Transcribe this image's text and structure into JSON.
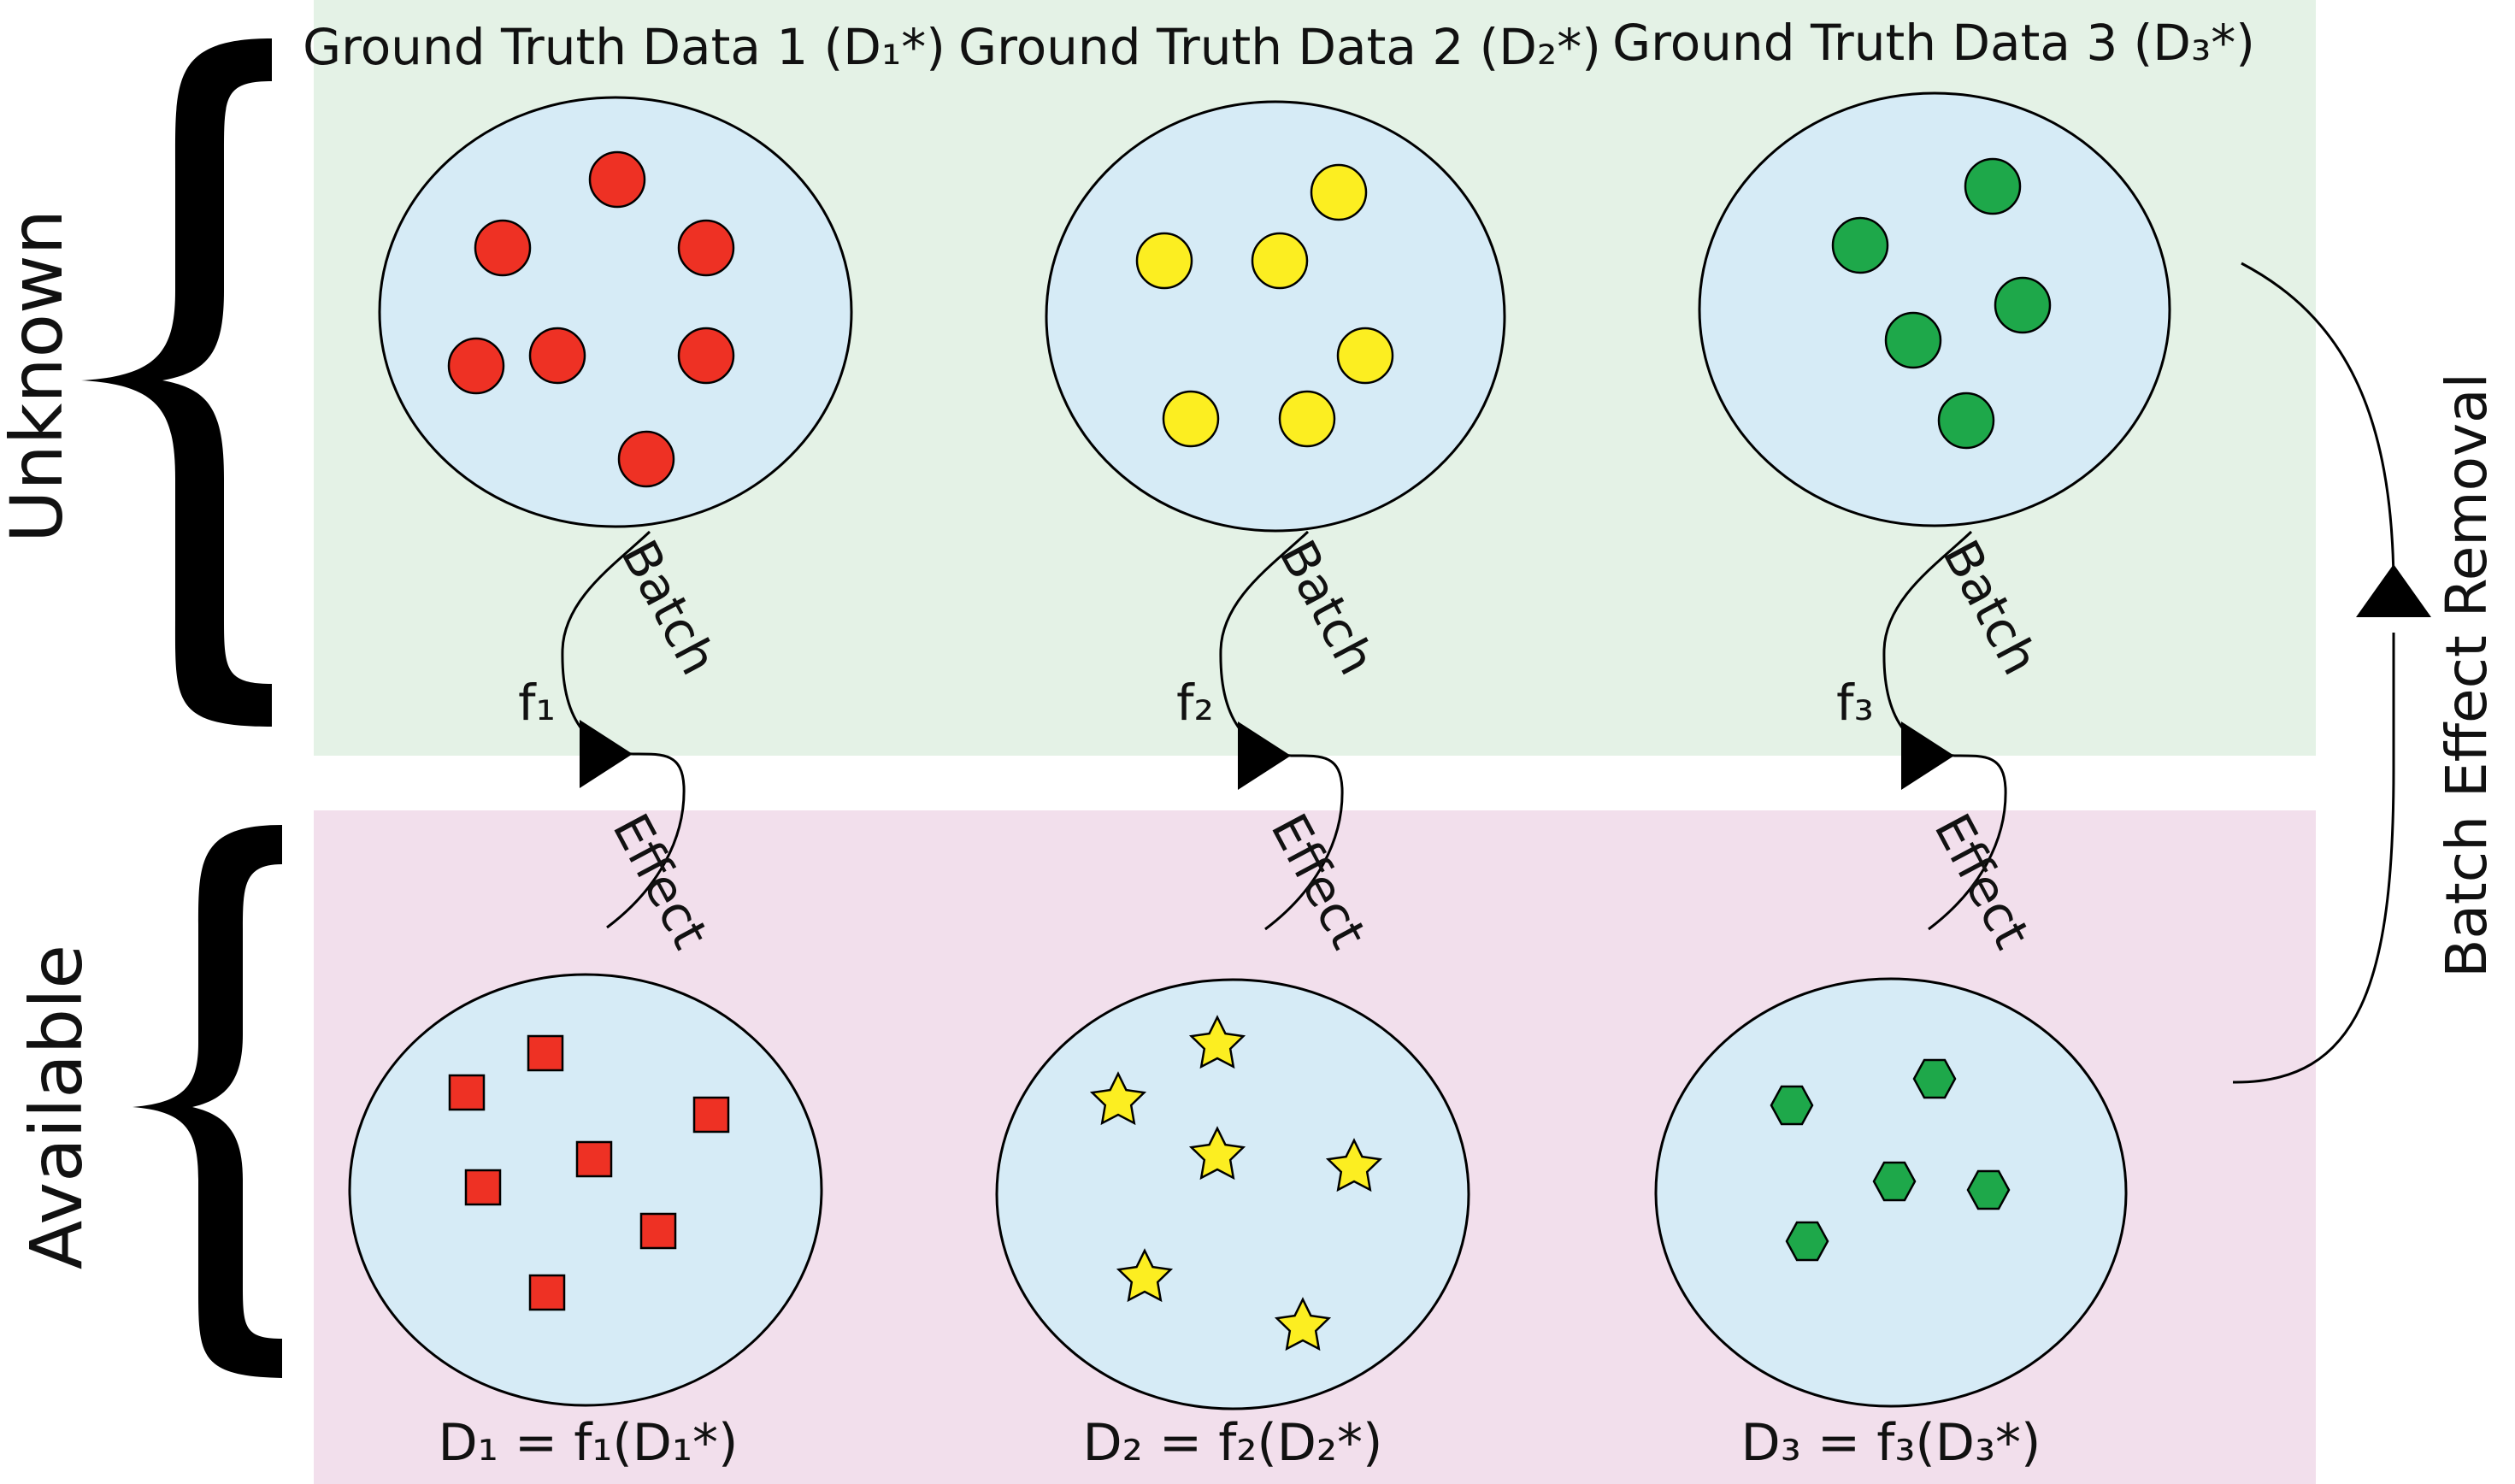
{
  "colors": {
    "unknown_band": "#e4f2e6",
    "available_band": "#f2dfec",
    "ellipse_fill": "#d6ebf6",
    "red": "#ee3124",
    "yellow": "#fcee21",
    "green": "#1ea84a",
    "stroke": "#000000"
  },
  "sides": {
    "unknown": "Unknown",
    "available": "Available"
  },
  "ground_truth_titles": [
    "Ground Truth Data 1 (D₁*)",
    "Ground Truth Data 2 (D₂*)",
    "Ground Truth Data 3 (D₃*)"
  ],
  "batch_label": "Batch",
  "effect_label": "Effect",
  "functions": [
    "f₁",
    "f₂",
    "f₃"
  ],
  "observed_formulas": [
    "D₁ = f₁(D₁*)",
    "D₂ = f₂(D₂*)",
    "D₃ = f₃(D₃*)"
  ],
  "removal_label": "Batch Effect Removal",
  "icons": {
    "ground_truth_points": "circle-icon",
    "observed_1": "square-icon",
    "observed_2": "star-icon",
    "observed_3": "hexagon-icon",
    "left_braces": "curly-brace-icon",
    "arrowhead": "triangle-arrow-icon"
  }
}
